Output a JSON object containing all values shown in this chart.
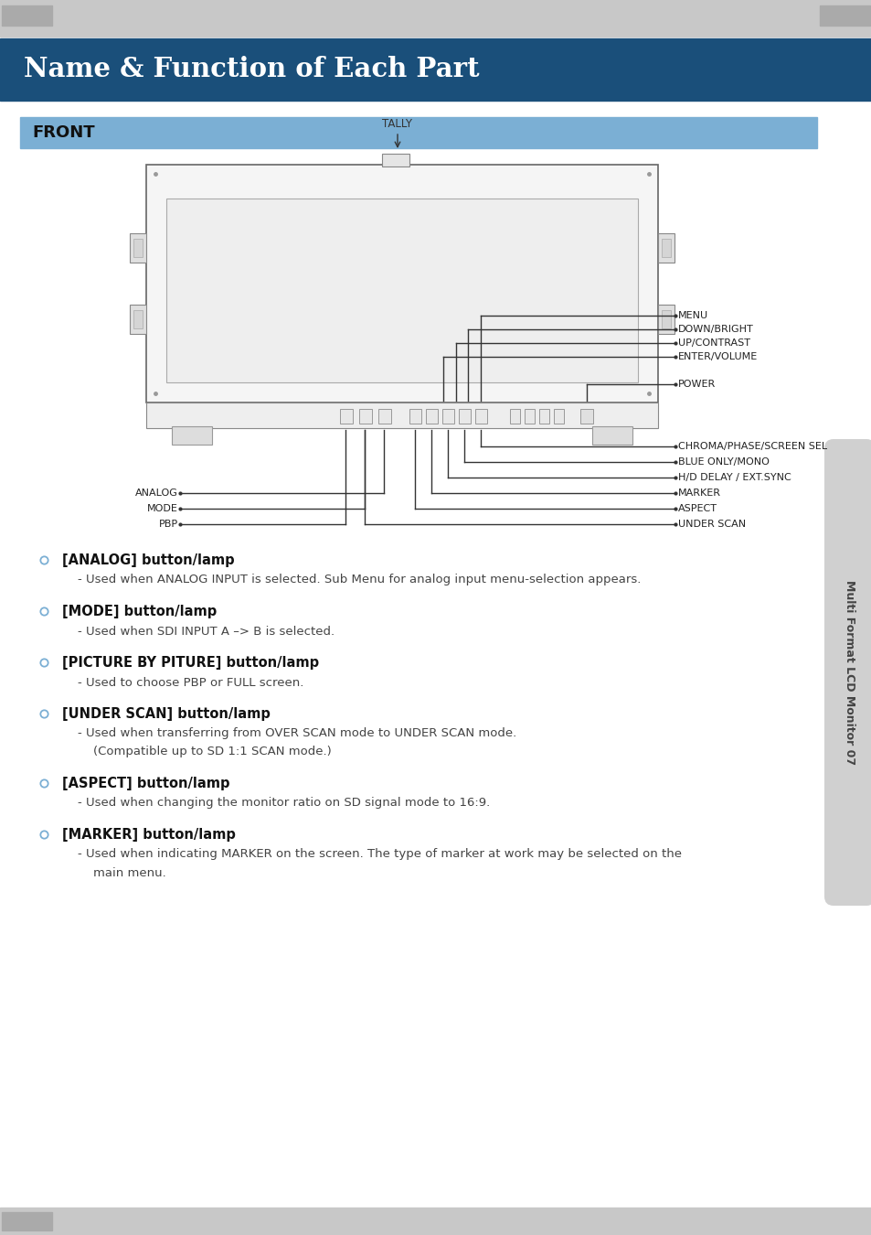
{
  "title": "Name & Function of Each Part",
  "title_bg": "#1a4f7a",
  "title_fg": "#ffffff",
  "front_label": "FRONT",
  "front_bg": "#7bafd4",
  "page_bg": "#ffffff",
  "top_strip_bg": "#c8c8c8",
  "bottom_strip_bg": "#c8c8c8",
  "corner_tab_bg": "#aaaaaa",
  "sidebar_bg": "#d0d0d0",
  "sidebar_text": "Multi Format LCD Monitor 07",
  "bullet_color": "#7bafd4",
  "line_color": "#333333",
  "items": [
    {
      "label": "[ANALOG] button/lamp",
      "desc": "- Used when ANALOG INPUT is selected. Sub Menu for analog input menu-selection appears."
    },
    {
      "label": "[MODE] button/lamp",
      "desc": "- Used when SDI INPUT A –> B is selected."
    },
    {
      "label": "[PICTURE BY PITURE] button/lamp",
      "desc": "- Used to choose PBP or FULL screen."
    },
    {
      "label": "[UNDER SCAN] button/lamp",
      "desc": "- Used when transferring from OVER SCAN mode to UNDER SCAN mode.\n    (Compatible up to SD 1:1 SCAN mode.)"
    },
    {
      "label": "[ASPECT] button/lamp",
      "desc": "- Used when changing the monitor ratio on SD signal mode to 16:9."
    },
    {
      "label": "[MARKER] button/lamp",
      "desc": "- Used when indicating MARKER on the screen. The type of marker at work may be selected on the\n    main menu."
    }
  ],
  "right_labels": [
    "MENU",
    "DOWN/BRIGHT",
    "UP/CONTRAST",
    "ENTER/VOLUME",
    "POWER"
  ],
  "right_bottom_labels": [
    "CHROMA/PHASE/SCREEN SEL",
    "BLUE ONLY/MONO",
    "H/D DELAY / EXT.SYNC",
    "MARKER",
    "ASPECT",
    "UNDER SCAN"
  ],
  "left_labels": [
    "ANALOG",
    "MODE",
    "PBP"
  ],
  "tally_label": "TALLY"
}
